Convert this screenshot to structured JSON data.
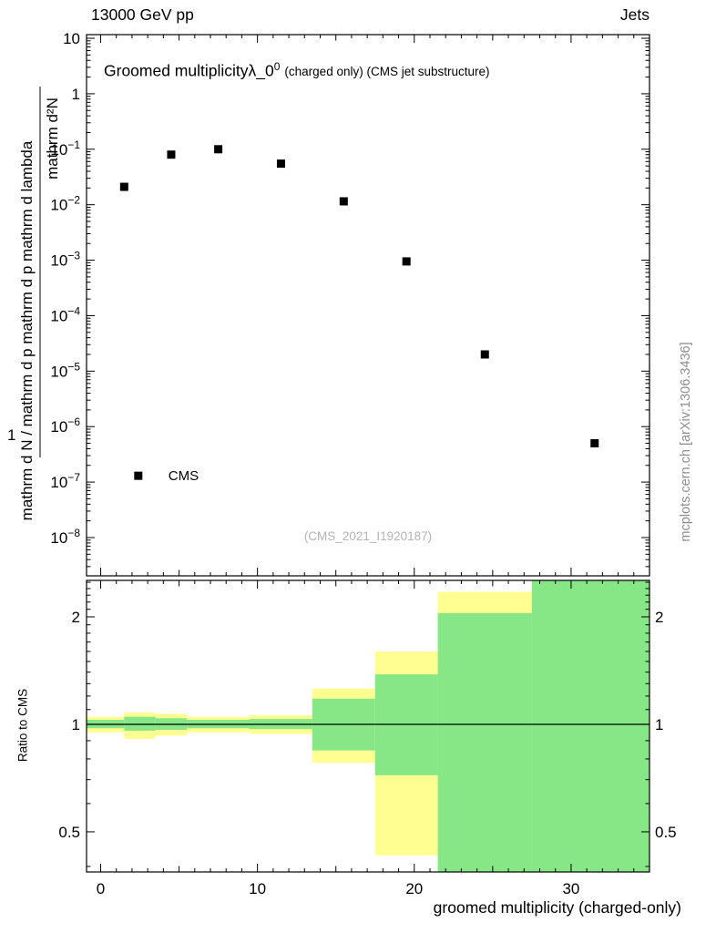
{
  "header": {
    "left": "13000 GeV pp",
    "right": "Jets"
  },
  "title": {
    "main": "Groomed multiplicityλ_0",
    "sup": "0",
    "rest": "(charged only) (CMS jet substructure)"
  },
  "labels": {
    "watermark": "(CMS_2021_I1920187)",
    "right_credit": "mcplots.cern.ch [arXiv:1306.3436]",
    "xlabel": "groomed multiplicity (charged-only)",
    "ratio_ylabel": "Ratio to CMS",
    "ylabel_outer": "mathrm d N / mathrm d p mathrm d p mathrm d lambda",
    "ylabel_inner": "mathrm d²N",
    "ylabel_one": "1"
  },
  "chart_data": {
    "type": "scatter",
    "title": "Groomed multiplicity λ_0^0 (charged only) (CMS jet substructure)",
    "xlabel": "groomed multiplicity (charged-only)",
    "x_range": [
      -0.9,
      35.0
    ],
    "x_major_ticks": [
      0,
      10,
      20,
      30
    ],
    "x_minor_step": 1,
    "y_scale": "log",
    "y_exp_range": [
      -8.69,
      1.066
    ],
    "y_tick_exps": [
      1,
      0,
      -1,
      -2,
      -3,
      -4,
      -5,
      -6,
      -7,
      -8
    ],
    "series": [
      {
        "name": "CMS",
        "marker": "square",
        "color": "#000000",
        "points": [
          [
            1.5,
            0.021
          ],
          [
            4.5,
            0.08
          ],
          [
            7.5,
            0.1
          ],
          [
            11.5,
            0.055
          ],
          [
            15.5,
            0.0115
          ],
          [
            19.5,
            0.00095
          ],
          [
            24.5,
            2e-05
          ],
          [
            31.5,
            5e-07
          ]
        ]
      }
    ],
    "legend": {
      "x": 2.4,
      "y": 1.3e-07,
      "label": "CMS"
    },
    "colors": {
      "band_outer": "#ffff91",
      "band_inner": "#87e787",
      "marker": "#000000"
    },
    "ratio": {
      "ylabel": "Ratio to CMS",
      "y_scale": "log",
      "y_range": [
        0.386,
        2.53
      ],
      "y_ticks": [
        2,
        1,
        0.5
      ],
      "y_minor": [
        0.4,
        0.6,
        0.7,
        0.8,
        0.9,
        1.1,
        1.2,
        1.3,
        1.4,
        1.5,
        1.6,
        1.7,
        1.8,
        1.9,
        2.1,
        2.2,
        2.3,
        2.4,
        2.5
      ],
      "line_y": 1,
      "bands": [
        {
          "x0": -0.9,
          "x1": 1.5,
          "ylo": 0.95,
          "yhi": 1.05,
          "glo": 0.975,
          "ghi": 1.03
        },
        {
          "x0": 1.5,
          "x1": 3.5,
          "ylo": 0.91,
          "yhi": 1.08,
          "glo": 0.96,
          "ghi": 1.05
        },
        {
          "x0": 3.5,
          "x1": 5.5,
          "ylo": 0.93,
          "yhi": 1.07,
          "glo": 0.965,
          "ghi": 1.04
        },
        {
          "x0": 5.5,
          "x1": 9.5,
          "ylo": 0.95,
          "yhi": 1.05,
          "glo": 0.975,
          "ghi": 1.03
        },
        {
          "x0": 9.5,
          "x1": 13.5,
          "ylo": 0.94,
          "yhi": 1.06,
          "glo": 0.97,
          "ghi": 1.035
        },
        {
          "x0": 13.5,
          "x1": 17.5,
          "ylo": 0.78,
          "yhi": 1.26,
          "glo": 0.845,
          "ghi": 1.18
        },
        {
          "x0": 17.5,
          "x1": 21.5,
          "ylo": 0.43,
          "yhi": 1.6,
          "glo": 0.72,
          "ghi": 1.38
        },
        {
          "x0": 21.5,
          "x1": 27.5,
          "ylo": 0.386,
          "yhi": 2.35,
          "glo": 0.386,
          "ghi": 2.05
        },
        {
          "x0": 27.5,
          "x1": 35.0,
          "ylo": 0.386,
          "yhi": 2.53,
          "glo": 0.386,
          "ghi": 2.53
        }
      ]
    }
  }
}
